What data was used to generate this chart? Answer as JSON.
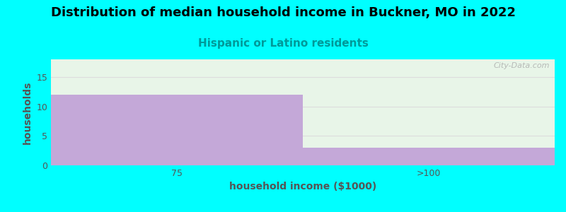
{
  "title": "Distribution of median household income in Buckner, MO in 2022",
  "subtitle": "Hispanic or Latino residents",
  "xlabel": "household income ($1000)",
  "ylabel": "households",
  "categories": [
    "75",
    ">100"
  ],
  "values": [
    12,
    3
  ],
  "bar_color": "#c4a8d8",
  "background_color": "#00ffff",
  "plot_bg_top": "#e8f5e8",
  "plot_bg_bottom": "#f5fff5",
  "title_color": "#000000",
  "subtitle_color": "#009999",
  "xlabel_color": "#555555",
  "ylabel_color": "#555555",
  "tick_color": "#555555",
  "grid_color": "#dddddd",
  "ylim": [
    0,
    18
  ],
  "yticks": [
    0,
    5,
    10,
    15
  ],
  "title_fontsize": 13,
  "subtitle_fontsize": 11,
  "label_fontsize": 10,
  "tick_fontsize": 9,
  "watermark": "City-Data.com"
}
